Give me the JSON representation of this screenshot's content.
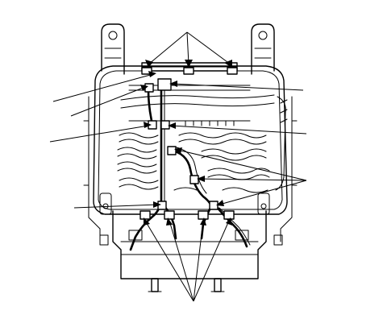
{
  "diagram": {
    "kind": "seat-frame wiring harness illustration",
    "callouts": [],
    "colors": {
      "line": "#000000",
      "background": "#ffffff"
    }
  }
}
